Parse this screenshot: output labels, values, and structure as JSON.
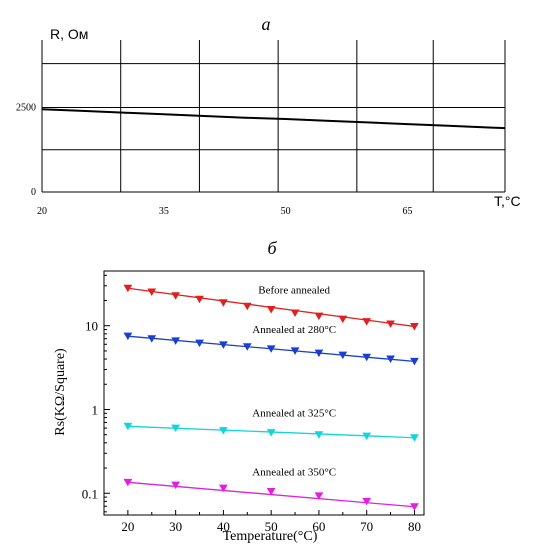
{
  "chart_data": [
    {
      "panel_label": "а",
      "type": "line",
      "ylabel": "R, Ом",
      "xlabel": "T,°C",
      "x_ticks": [
        20,
        35,
        50,
        65
      ],
      "y_ticks": [
        0,
        2500
      ],
      "xlim": [
        20,
        77
      ],
      "ylim": [
        0,
        4500
      ],
      "grid": true,
      "colors": {
        "line": "#000000",
        "grid": "#000000"
      },
      "series": [
        {
          "x": [
            20,
            25,
            30,
            35,
            40,
            45,
            50,
            55,
            60,
            65,
            70,
            75,
            77
          ],
          "values": [
            2450,
            2400,
            2350,
            2300,
            2250,
            2200,
            2160,
            2110,
            2060,
            2010,
            1960,
            1910,
            1890
          ]
        }
      ]
    },
    {
      "panel_label": "б",
      "type": "scatter",
      "xlabel": "Temperature(°C)",
      "ylabel": "Rs(KΩ/Square)",
      "y_scale": "log",
      "x_ticks": [
        20,
        30,
        40,
        50,
        60,
        70,
        80
      ],
      "y_ticks": [
        0.1,
        1,
        10
      ],
      "y_tick_labels": [
        "0.1",
        "1",
        "10"
      ],
      "xlim": [
        15,
        82
      ],
      "ylim": [
        0.055,
        45
      ],
      "grid": false,
      "series": [
        {
          "name": "Before annealed",
          "color": "#e02020",
          "x": [
            20,
            25,
            30,
            35,
            40,
            45,
            50,
            55,
            60,
            65,
            70,
            75,
            80
          ],
          "values": [
            28,
            25.3,
            22.8,
            20.7,
            18.8,
            17.1,
            15.6,
            14.2,
            13.0,
            12.0,
            11.2,
            10.5,
            9.8
          ]
        },
        {
          "name": "Annealed at 280°C",
          "color": "#1a3fd0",
          "x": [
            20,
            25,
            30,
            35,
            40,
            45,
            50,
            55,
            60,
            65,
            70,
            75,
            80
          ],
          "values": [
            7.5,
            7.0,
            6.6,
            6.2,
            5.9,
            5.6,
            5.3,
            5.0,
            4.7,
            4.45,
            4.2,
            4.0,
            3.75
          ]
        },
        {
          "name": "Annealed at 325°C",
          "color": "#10d4e0",
          "x": [
            20,
            30,
            40,
            50,
            60,
            70,
            80
          ],
          "values": [
            0.63,
            0.6,
            0.56,
            0.53,
            0.5,
            0.48,
            0.46
          ]
        },
        {
          "name": "Annealed at 350°C",
          "color": "#e020e0",
          "x": [
            20,
            30,
            40,
            50,
            60,
            70,
            80
          ],
          "values": [
            0.135,
            0.125,
            0.115,
            0.105,
            0.093,
            0.08,
            0.069
          ]
        }
      ]
    }
  ]
}
